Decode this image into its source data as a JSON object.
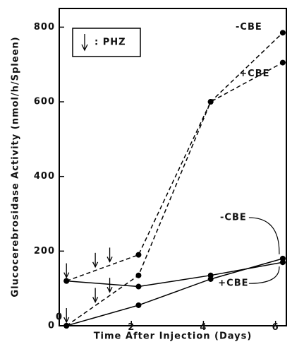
{
  "chart_data": {
    "type": "line",
    "x_label": "Time After Injection (Days)",
    "y_label": "Glucocerebrosidase  Activity (nmol/h/Spleen)",
    "legend_label": ": PHZ",
    "injections": [
      0.2,
      1.0,
      1.4
    ],
    "series": [
      {
        "name": "-CBE",
        "color": "#000000",
        "dashed": true,
        "x": [
          0.2,
          2.2,
          4.2,
          6.2
        ],
        "values": [
          0,
          135,
          600,
          785
        ]
      },
      {
        "name": "+CBE",
        "color": "#000000",
        "dashed": true,
        "x": [
          0.2,
          2.2,
          4.2,
          6.2
        ],
        "values": [
          120,
          190,
          600,
          705
        ]
      },
      {
        "name": "-CBE",
        "color": "#000000",
        "dashed": false,
        "x": [
          0.2,
          2.2,
          4.2,
          6.2
        ],
        "values": [
          0,
          55,
          125,
          180
        ]
      },
      {
        "name": "+CBE",
        "color": "#000000",
        "dashed": false,
        "x": [
          0.2,
          2.2,
          4.2,
          6.2
        ],
        "values": [
          120,
          105,
          135,
          170
        ]
      }
    ],
    "xlim": [
      0,
      6.3
    ],
    "xticks": [
      0,
      2,
      4,
      6
    ],
    "ylim": [
      0,
      850
    ],
    "yticks": [
      0,
      200,
      400,
      600,
      800
    ]
  }
}
